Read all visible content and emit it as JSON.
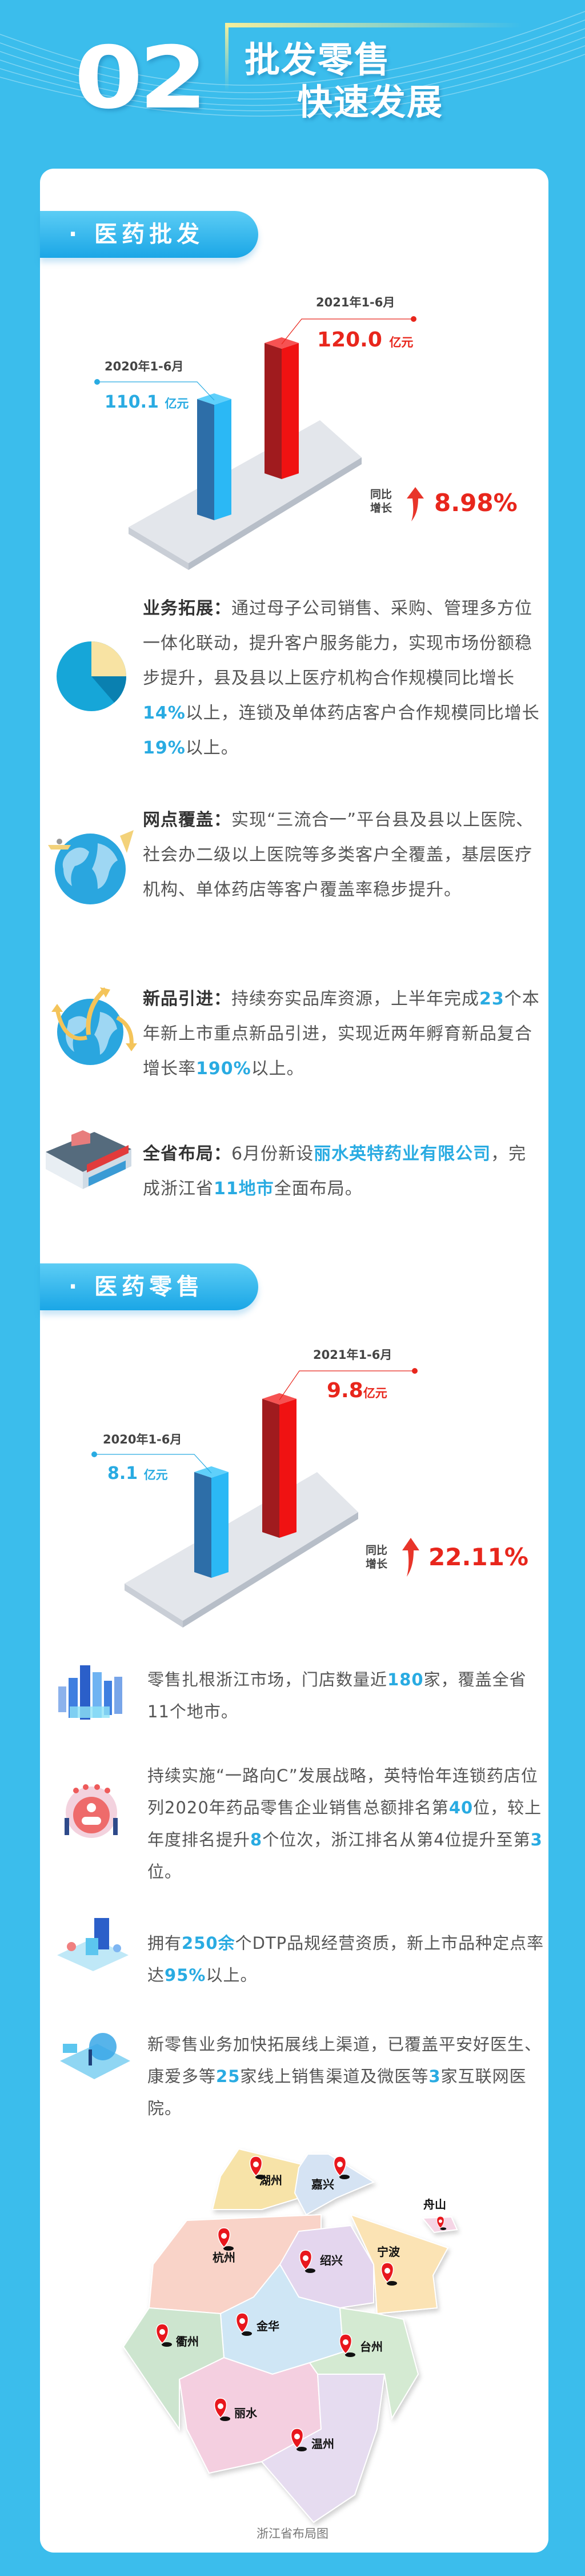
{
  "header": {
    "number": "02",
    "title_line1": "批发零售",
    "title_line2": "快速发展"
  },
  "colors": {
    "background": "#3bbdec",
    "accent_blue": "#29abe2",
    "accent_red": "#e8261c"
  },
  "wholesale": {
    "section_title": "· 医药批发",
    "chart": {
      "prev_period": "2020年1-6月",
      "prev_value": "110.1",
      "cur_period": "2021年1-6月",
      "cur_value": "120.0",
      "unit": "亿元",
      "growth_label_1": "同比",
      "growth_label_2": "增长",
      "growth_value": "8.98%"
    },
    "items": [
      {
        "icon": "pie-chart-icon",
        "segments": [
          {
            "t": "业务拓展：",
            "s": "b"
          },
          {
            "t": "通过母子公司销售、采购、管理多方位一体化联动，提升客户服务能力，实现市场份额稳步提升，县及县以上医疗机构合作规模同比增长"
          },
          {
            "t": "14%",
            "s": "h"
          },
          {
            "t": "以上，连锁及单体药店客户合作规模同比增长"
          },
          {
            "t": "19%",
            "s": "h"
          },
          {
            "t": "以上。"
          }
        ]
      },
      {
        "icon": "globe-satellite-icon",
        "segments": [
          {
            "t": "网点覆盖：",
            "s": "b"
          },
          {
            "t": "实现“三流合一”平台县及县以上医院、社会办二级以上医院等多类客户全覆盖，基层医疗机构、单体药店等客户覆盖率稳步提升。"
          }
        ]
      },
      {
        "icon": "globe-arrows-icon",
        "segments": [
          {
            "t": "新品引进：",
            "s": "b"
          },
          {
            "t": "持续夯实品库资源，上半年完成"
          },
          {
            "t": "23",
            "s": "h"
          },
          {
            "t": "个本年新上市重点新品引进，实现近两年孵育新品复合增长率"
          },
          {
            "t": "190%",
            "s": "h"
          },
          {
            "t": "以上。"
          }
        ]
      },
      {
        "icon": "store-icon",
        "segments": [
          {
            "t": "全省布局：",
            "s": "b"
          },
          {
            "t": "6月份新设"
          },
          {
            "t": "丽水英特药业有限公司",
            "s": "h"
          },
          {
            "t": "，完成浙江省"
          },
          {
            "t": "11地市",
            "s": "h"
          },
          {
            "t": "全面布局。"
          }
        ]
      }
    ]
  },
  "retail": {
    "section_title": "· 医药零售",
    "chart": {
      "prev_period": "2020年1-6月",
      "prev_value": "8.1",
      "cur_period": "2021年1-6月",
      "cur_value": "9.8",
      "unit": "亿元",
      "growth_label_1": "同比",
      "growth_label_2": "增长",
      "growth_value": "22.11%"
    },
    "items": [
      {
        "icon": "city-icon",
        "segments": [
          {
            "t": "零售扎根浙江市场，门店数量近"
          },
          {
            "t": "180",
            "s": "h"
          },
          {
            "t": "家，覆盖全省11个地市。"
          }
        ]
      },
      {
        "icon": "ranking-icon",
        "segments": [
          {
            "t": "持续实施“一路向C”发展战略，英特怡年连锁药店位列2020年药品零售企业销售总额排名第"
          },
          {
            "t": "40",
            "s": "h"
          },
          {
            "t": "位，较上年度排名提升"
          },
          {
            "t": "8",
            "s": "h"
          },
          {
            "t": "个位次，浙江排名从第4位提升至第"
          },
          {
            "t": "3",
            "s": "h"
          },
          {
            "t": "位。"
          }
        ]
      },
      {
        "icon": "pharmacy-lab-icon",
        "segments": [
          {
            "t": "拥有"
          },
          {
            "t": "250余",
            "s": "h"
          },
          {
            "t": "个DTP品规经营资质，新上市品种定点率达"
          },
          {
            "t": "95%",
            "s": "h"
          },
          {
            "t": "以上。"
          }
        ]
      },
      {
        "icon": "online-channel-icon",
        "segments": [
          {
            "t": "新零售业务加快拓展线上渠道，已覆盖平安好医生、康爱多等"
          },
          {
            "t": "25",
            "s": "h"
          },
          {
            "t": "家线上销售渠道及微医等"
          },
          {
            "t": "3",
            "s": "h"
          },
          {
            "t": "家互联网医院。"
          }
        ]
      }
    ]
  },
  "map": {
    "caption": "浙江省布局图",
    "cities": [
      "湖州",
      "嘉兴",
      "舟山",
      "杭州",
      "绍兴",
      "宁波",
      "衢州",
      "金华",
      "台州",
      "丽水",
      "温州"
    ]
  },
  "chart_data": [
    {
      "type": "bar",
      "title": "",
      "categories": [
        "2020年1-6月",
        "2021年1-6月"
      ],
      "values": [
        110.1,
        120.0
      ],
      "unit": "亿元",
      "growth": "8.98%"
    },
    {
      "type": "bar",
      "title": "",
      "categories": [
        "2020年1-6月",
        "2021年1-6月"
      ],
      "values": [
        8.1,
        9.8
      ],
      "unit": "亿元",
      "growth": "22.11%"
    }
  ]
}
